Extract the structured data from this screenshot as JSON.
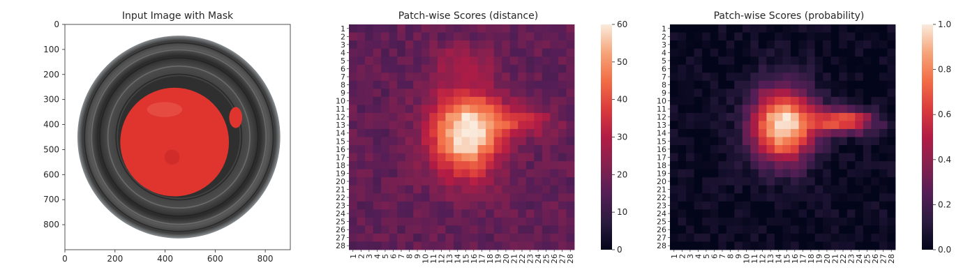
{
  "figure": {
    "background": "#ffffff"
  },
  "chart_data": [
    {
      "id": "input",
      "type": "image",
      "title": "Input Image with Mask",
      "xlim": [
        0,
        900
      ],
      "ylim": [
        900,
        0
      ],
      "xticks": [
        0,
        200,
        400,
        600,
        800
      ],
      "yticks": [
        0,
        100,
        200,
        300,
        400,
        500,
        600,
        700,
        800
      ],
      "dish": {
        "center": [
          455,
          450
        ],
        "outer_radius": 405,
        "colors": [
          "#2e2e2e",
          "#6c6c6c",
          "#9a9a9a"
        ]
      },
      "mask_regions": [
        {
          "name": "main",
          "center": [
            438,
            470
          ],
          "radius": 217,
          "color": "#e0352f"
        },
        {
          "name": "spot",
          "center": [
            682,
            372
          ],
          "radius_x": 26,
          "radius_y": 42,
          "color": "#e0352f"
        }
      ]
    },
    {
      "id": "distance",
      "type": "heatmap",
      "title": "Patch-wise Scores (distance)",
      "rows": 28,
      "cols": 28,
      "xticklabels": [
        "1",
        "2",
        "3",
        "4",
        "5",
        "6",
        "7",
        "8",
        "9",
        "10",
        "11",
        "12",
        "13",
        "14",
        "15",
        "16",
        "17",
        "18",
        "19",
        "20",
        "21",
        "22",
        "23",
        "24",
        "25",
        "26",
        "27",
        "28"
      ],
      "yticklabels": [
        "1",
        "2",
        "3",
        "4",
        "5",
        "6",
        "7",
        "8",
        "9",
        "10",
        "11",
        "12",
        "13",
        "14",
        "15",
        "16",
        "17",
        "18",
        "19",
        "20",
        "21",
        "22",
        "23",
        "24",
        "25",
        "26",
        "27",
        "28"
      ],
      "vmin": 0,
      "vmax": 60,
      "colorbar_ticks": [
        0,
        10,
        20,
        30,
        40,
        50,
        60
      ],
      "background_level": 17,
      "blobs": [
        {
          "center": [
            15.0,
            14.0
          ],
          "amplitude": 45,
          "sigma": [
            3.0,
            3.8
          ]
        },
        {
          "center": [
            21.5,
            12.5
          ],
          "amplitude": 17,
          "sigma": [
            3.0,
            1.4
          ]
        },
        {
          "center": [
            14.5,
            5.0
          ],
          "amplitude": 8,
          "sigma": [
            2.5,
            1.5
          ]
        }
      ]
    },
    {
      "id": "probability",
      "type": "heatmap",
      "title": "Patch-wise Scores (probability)",
      "rows": 28,
      "cols": 28,
      "xticklabels": [
        "1",
        "2",
        "3",
        "4",
        "5",
        "6",
        "7",
        "8",
        "9",
        "10",
        "11",
        "12",
        "13",
        "14",
        "15",
        "16",
        "17",
        "18",
        "19",
        "20",
        "21",
        "22",
        "23",
        "24",
        "25",
        "26",
        "27",
        "28"
      ],
      "yticklabels": [
        "1",
        "2",
        "3",
        "4",
        "5",
        "6",
        "7",
        "8",
        "9",
        "10",
        "11",
        "12",
        "13",
        "14",
        "15",
        "16",
        "17",
        "18",
        "19",
        "20",
        "21",
        "22",
        "23",
        "24",
        "25",
        "26",
        "27",
        "28"
      ],
      "vmin": 0.0,
      "vmax": 1.0,
      "colorbar_ticks": [
        "0.0",
        "0.2",
        "0.4",
        "0.6",
        "0.8",
        "1.0"
      ],
      "background_level": 0.02,
      "blobs": [
        {
          "center": [
            14.5,
            13.0
          ],
          "amplitude": 1.0,
          "sigma": [
            2.7,
            3.3
          ]
        },
        {
          "center": [
            22.0,
            12.5
          ],
          "amplitude": 0.7,
          "sigma": [
            2.8,
            1.1
          ]
        }
      ]
    }
  ]
}
